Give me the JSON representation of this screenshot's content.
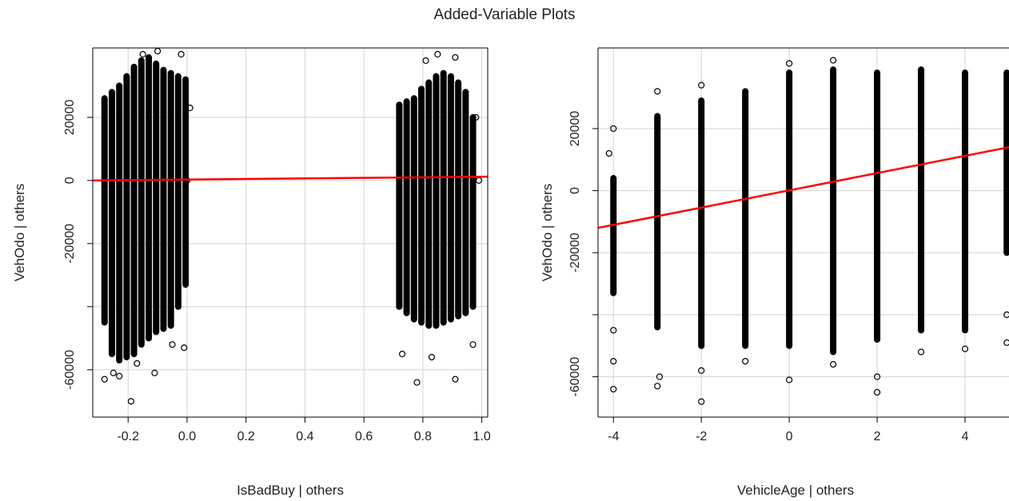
{
  "title": "Added-Variable Plots",
  "chart_data": [
    {
      "type": "scatter",
      "xlabel": "IsBadBuy | others",
      "ylabel": "VehOdo  | others",
      "xlim": [
        -0.32,
        1.02
      ],
      "ylim": [
        -75000,
        42000
      ],
      "xticks": [
        -0.2,
        0.0,
        0.2,
        0.4,
        0.6,
        0.8,
        1.0
      ],
      "xtick_labels": [
        "-0.2",
        "0.0",
        "0.2",
        "0.4",
        "0.6",
        "0.8",
        "1.0"
      ],
      "yticks": [
        -60000,
        -20000,
        20000
      ],
      "ytick_labels": [
        "-60000",
        "-20000",
        "20000"
      ],
      "yticks_unlabeled": [
        -40000,
        0
      ],
      "ytick_unlabeled_labels": [
        "",
        "0"
      ],
      "grid": true,
      "clusters": [
        {
          "x": -0.28,
          "ymin": -45000,
          "ymax": 26000
        },
        {
          "x": -0.255,
          "ymin": -55000,
          "ymax": 28000
        },
        {
          "x": -0.23,
          "ymin": -57000,
          "ymax": 30000
        },
        {
          "x": -0.205,
          "ymin": -56000,
          "ymax": 33000
        },
        {
          "x": -0.18,
          "ymin": -55000,
          "ymax": 36000
        },
        {
          "x": -0.155,
          "ymin": -52000,
          "ymax": 38000
        },
        {
          "x": -0.13,
          "ymin": -50000,
          "ymax": 39000
        },
        {
          "x": -0.105,
          "ymin": -48000,
          "ymax": 37000
        },
        {
          "x": -0.08,
          "ymin": -47000,
          "ymax": 35000
        },
        {
          "x": -0.055,
          "ymin": -46000,
          "ymax": 34000
        },
        {
          "x": -0.03,
          "ymin": -40000,
          "ymax": 33000
        },
        {
          "x": -0.005,
          "ymin": -33000,
          "ymax": 32000
        },
        {
          "x": 0.72,
          "ymin": -40000,
          "ymax": 24000
        },
        {
          "x": 0.745,
          "ymin": -42000,
          "ymax": 25000
        },
        {
          "x": 0.77,
          "ymin": -44000,
          "ymax": 26000
        },
        {
          "x": 0.795,
          "ymin": -45000,
          "ymax": 29000
        },
        {
          "x": 0.82,
          "ymin": -46000,
          "ymax": 31000
        },
        {
          "x": 0.845,
          "ymin": -46000,
          "ymax": 33000
        },
        {
          "x": 0.87,
          "ymin": -45000,
          "ymax": 34000
        },
        {
          "x": 0.895,
          "ymin": -44000,
          "ymax": 33000
        },
        {
          "x": 0.92,
          "ymin": -43000,
          "ymax": 31000
        },
        {
          "x": 0.945,
          "ymin": -42000,
          "ymax": 28000
        },
        {
          "x": 0.97,
          "ymin": -40000,
          "ymax": 20000
        }
      ],
      "outliers": [
        {
          "x": -0.28,
          "y": -63000
        },
        {
          "x": -0.25,
          "y": -61000
        },
        {
          "x": -0.23,
          "y": -62000
        },
        {
          "x": -0.19,
          "y": -70000
        },
        {
          "x": -0.17,
          "y": -58000
        },
        {
          "x": -0.11,
          "y": -61000
        },
        {
          "x": -0.05,
          "y": -52000
        },
        {
          "x": -0.01,
          "y": -53000
        },
        {
          "x": 0.01,
          "y": 23000
        },
        {
          "x": -0.02,
          "y": 40000
        },
        {
          "x": -0.1,
          "y": 41000
        },
        {
          "x": -0.15,
          "y": 40000
        },
        {
          "x": 0.0,
          "y": 0
        },
        {
          "x": 0.73,
          "y": -55000
        },
        {
          "x": 0.78,
          "y": -64000
        },
        {
          "x": 0.83,
          "y": -56000
        },
        {
          "x": 0.91,
          "y": -63000
        },
        {
          "x": 0.97,
          "y": -52000
        },
        {
          "x": 0.85,
          "y": 40000
        },
        {
          "x": 0.91,
          "y": 39000
        },
        {
          "x": 0.81,
          "y": 38000
        },
        {
          "x": 0.98,
          "y": 20000
        },
        {
          "x": 0.99,
          "y": 0
        }
      ],
      "fit_line": {
        "x": [
          -0.32,
          1.02
        ],
        "y": [
          0,
          1200
        ]
      },
      "point_color": "#000000",
      "line_color": "#ff0000"
    },
    {
      "type": "scatter",
      "xlabel": "VehicleAge | others",
      "ylabel": "VehOdo  | others",
      "xlim": [
        -4.35,
        5.0
      ],
      "ylim": [
        -73000,
        46000
      ],
      "xticks": [
        -4,
        -2,
        0,
        2,
        4
      ],
      "xtick_labels": [
        "-4",
        "-2",
        "0",
        "2",
        "4"
      ],
      "yticks": [
        -60000,
        -20000,
        20000
      ],
      "ytick_labels": [
        "-60000",
        "-20000",
        "20000"
      ],
      "yticks_unlabeled": [
        -40000,
        0
      ],
      "ytick_unlabeled_labels": [
        "",
        "0"
      ],
      "grid": true,
      "clusters": [
        {
          "x": -4,
          "ymin": -33000,
          "ymax": 4000
        },
        {
          "x": -3,
          "ymin": -44000,
          "ymax": 24000
        },
        {
          "x": -2,
          "ymin": -50000,
          "ymax": 29000
        },
        {
          "x": -1,
          "ymin": -50000,
          "ymax": 32000
        },
        {
          "x": 0,
          "ymin": -50000,
          "ymax": 38000
        },
        {
          "x": 1,
          "ymin": -52000,
          "ymax": 39000
        },
        {
          "x": 2,
          "ymin": -48000,
          "ymax": 38000
        },
        {
          "x": 3,
          "ymin": -45000,
          "ymax": 39000
        },
        {
          "x": 4,
          "ymin": -45000,
          "ymax": 38000
        },
        {
          "x": 4.95,
          "ymin": -20000,
          "ymax": 38000
        }
      ],
      "outliers": [
        {
          "x": -4,
          "y": -64000
        },
        {
          "x": -4,
          "y": -55000
        },
        {
          "x": -4,
          "y": -45000
        },
        {
          "x": -4,
          "y": 20000
        },
        {
          "x": -4.1,
          "y": 12000
        },
        {
          "x": -3,
          "y": -63000
        },
        {
          "x": -2.95,
          "y": -60000
        },
        {
          "x": -2,
          "y": -68000
        },
        {
          "x": -2,
          "y": -58000
        },
        {
          "x": -1,
          "y": -55000
        },
        {
          "x": 0,
          "y": -61000
        },
        {
          "x": 1,
          "y": -56000
        },
        {
          "x": 2,
          "y": -65000
        },
        {
          "x": 2,
          "y": -60000
        },
        {
          "x": 3,
          "y": -52000
        },
        {
          "x": 4,
          "y": -51000
        },
        {
          "x": 4.95,
          "y": -49000
        },
        {
          "x": 4.95,
          "y": -40000
        },
        {
          "x": 0,
          "y": 41000
        },
        {
          "x": 1,
          "y": 42000
        },
        {
          "x": -3,
          "y": 32000
        },
        {
          "x": -2,
          "y": 34000
        }
      ],
      "fit_line": {
        "x": [
          -4.35,
          5.0
        ],
        "y": [
          -12000,
          14000
        ]
      },
      "point_color": "#000000",
      "line_color": "#ff0000"
    }
  ]
}
